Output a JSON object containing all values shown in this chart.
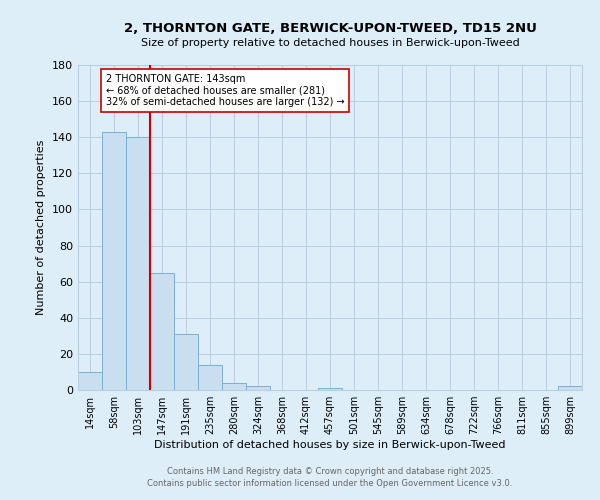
{
  "title": "2, THORNTON GATE, BERWICK-UPON-TWEED, TD15 2NU",
  "subtitle": "Size of property relative to detached houses in Berwick-upon-Tweed",
  "xlabel": "Distribution of detached houses by size in Berwick-upon-Tweed",
  "ylabel": "Number of detached properties",
  "bin_labels": [
    "14sqm",
    "58sqm",
    "103sqm",
    "147sqm",
    "191sqm",
    "235sqm",
    "280sqm",
    "324sqm",
    "368sqm",
    "412sqm",
    "457sqm",
    "501sqm",
    "545sqm",
    "589sqm",
    "634sqm",
    "678sqm",
    "722sqm",
    "766sqm",
    "811sqm",
    "855sqm",
    "899sqm"
  ],
  "bar_heights": [
    10,
    143,
    140,
    65,
    31,
    14,
    4,
    2,
    0,
    0,
    1,
    0,
    0,
    0,
    0,
    0,
    0,
    0,
    0,
    0,
    2
  ],
  "bar_color": "#c9dff0",
  "bar_edge_color": "#7bafd4",
  "vline_color": "#cc0000",
  "vline_x": 2.5,
  "ylim": [
    0,
    180
  ],
  "yticks": [
    0,
    20,
    40,
    60,
    80,
    100,
    120,
    140,
    160,
    180
  ],
  "annotation_text": "2 THORNTON GATE: 143sqm\n← 68% of detached houses are smaller (281)\n32% of semi-detached houses are larger (132) →",
  "annotation_box_color": "#ffffff",
  "annotation_box_edge": "#cc0000",
  "footer_line1": "Contains HM Land Registry data © Crown copyright and database right 2025.",
  "footer_line2": "Contains public sector information licensed under the Open Government Licence v3.0.",
  "background_color": "#ddeef8",
  "fig_background_color": "#ddeef8",
  "grid_color": "#b8cfe0"
}
